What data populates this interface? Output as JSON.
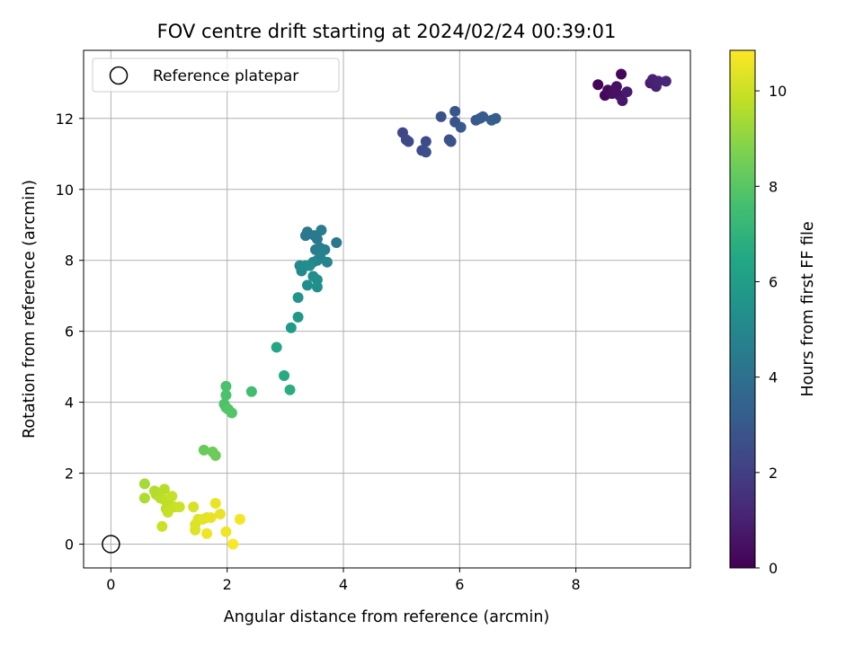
{
  "chart_data": {
    "type": "scatter",
    "title": "FOV centre drift starting at 2024/02/24 00:39:01",
    "xlabel": "Angular distance from reference (arcmin)",
    "ylabel": "Rotation from reference (arcmin)",
    "xlim": [
      -0.47,
      9.97
    ],
    "ylim": [
      -0.67,
      13.92
    ],
    "xticks": [
      0,
      2,
      4,
      6,
      8
    ],
    "yticks": [
      0,
      2,
      4,
      6,
      8,
      10,
      12
    ],
    "grid": true,
    "legend": {
      "placement": "top-left",
      "entries": [
        "Reference platepar"
      ]
    },
    "colorbar": {
      "label": "Hours from first FF file",
      "range": [
        0,
        10.85
      ],
      "ticks": [
        0,
        2,
        4,
        6,
        8,
        10
      ],
      "colormap": "viridis"
    },
    "reference_point": {
      "x": 0,
      "y": 0
    },
    "points": [
      {
        "x": 8.38,
        "y": 12.95,
        "c": 0.1
      },
      {
        "x": 8.5,
        "y": 12.65,
        "c": 0.2
      },
      {
        "x": 8.55,
        "y": 12.8,
        "c": 0.3
      },
      {
        "x": 8.62,
        "y": 12.7,
        "c": 0.4
      },
      {
        "x": 8.7,
        "y": 12.9,
        "c": 0.5
      },
      {
        "x": 8.75,
        "y": 12.65,
        "c": 0.6
      },
      {
        "x": 8.78,
        "y": 13.25,
        "c": 0.2
      },
      {
        "x": 8.8,
        "y": 12.5,
        "c": 0.7
      },
      {
        "x": 8.88,
        "y": 12.75,
        "c": 0.8
      },
      {
        "x": 8.68,
        "y": 12.75,
        "c": 0.5
      },
      {
        "x": 9.28,
        "y": 13.0,
        "c": 0.9
      },
      {
        "x": 9.32,
        "y": 13.1,
        "c": 1.0
      },
      {
        "x": 9.38,
        "y": 12.9,
        "c": 1.0
      },
      {
        "x": 9.42,
        "y": 13.05,
        "c": 1.1
      },
      {
        "x": 9.55,
        "y": 13.05,
        "c": 1.2
      },
      {
        "x": 5.02,
        "y": 11.6,
        "c": 2.3
      },
      {
        "x": 5.08,
        "y": 11.4,
        "c": 2.4
      },
      {
        "x": 5.12,
        "y": 11.35,
        "c": 2.4
      },
      {
        "x": 5.35,
        "y": 11.1,
        "c": 2.5
      },
      {
        "x": 5.42,
        "y": 11.35,
        "c": 2.5
      },
      {
        "x": 5.42,
        "y": 11.05,
        "c": 2.6
      },
      {
        "x": 5.68,
        "y": 12.05,
        "c": 2.7
      },
      {
        "x": 5.82,
        "y": 11.4,
        "c": 2.7
      },
      {
        "x": 5.85,
        "y": 11.35,
        "c": 2.8
      },
      {
        "x": 5.92,
        "y": 11.9,
        "c": 2.8
      },
      {
        "x": 5.92,
        "y": 12.2,
        "c": 2.9
      },
      {
        "x": 6.02,
        "y": 11.75,
        "c": 3.0
      },
      {
        "x": 6.28,
        "y": 11.95,
        "c": 3.0
      },
      {
        "x": 6.35,
        "y": 12.0,
        "c": 3.1
      },
      {
        "x": 6.4,
        "y": 12.05,
        "c": 3.1
      },
      {
        "x": 6.55,
        "y": 11.95,
        "c": 3.2
      },
      {
        "x": 6.62,
        "y": 12.0,
        "c": 3.2
      },
      {
        "x": 3.35,
        "y": 8.7,
        "c": 4.3
      },
      {
        "x": 3.38,
        "y": 8.8,
        "c": 4.3
      },
      {
        "x": 3.5,
        "y": 8.7,
        "c": 4.4
      },
      {
        "x": 3.55,
        "y": 8.6,
        "c": 4.4
      },
      {
        "x": 3.62,
        "y": 8.85,
        "c": 4.5
      },
      {
        "x": 3.88,
        "y": 8.5,
        "c": 4.3
      },
      {
        "x": 3.52,
        "y": 8.3,
        "c": 4.6
      },
      {
        "x": 3.6,
        "y": 8.35,
        "c": 4.6
      },
      {
        "x": 3.68,
        "y": 8.3,
        "c": 4.7
      },
      {
        "x": 3.55,
        "y": 8.0,
        "c": 4.8
      },
      {
        "x": 3.6,
        "y": 8.1,
        "c": 4.8
      },
      {
        "x": 3.72,
        "y": 7.95,
        "c": 4.9
      },
      {
        "x": 3.48,
        "y": 7.95,
        "c": 5.0
      },
      {
        "x": 3.25,
        "y": 7.85,
        "c": 5.1
      },
      {
        "x": 3.28,
        "y": 7.7,
        "c": 5.1
      },
      {
        "x": 3.35,
        "y": 7.85,
        "c": 5.2
      },
      {
        "x": 3.42,
        "y": 7.85,
        "c": 5.2
      },
      {
        "x": 3.38,
        "y": 7.3,
        "c": 5.3
      },
      {
        "x": 3.48,
        "y": 7.55,
        "c": 5.3
      },
      {
        "x": 3.55,
        "y": 7.45,
        "c": 5.4
      },
      {
        "x": 3.55,
        "y": 7.25,
        "c": 5.4
      },
      {
        "x": 3.22,
        "y": 6.95,
        "c": 5.6
      },
      {
        "x": 3.22,
        "y": 6.4,
        "c": 5.8
      },
      {
        "x": 3.1,
        "y": 6.1,
        "c": 5.9
      },
      {
        "x": 2.85,
        "y": 5.55,
        "c": 6.4
      },
      {
        "x": 2.98,
        "y": 4.75,
        "c": 6.6
      },
      {
        "x": 3.08,
        "y": 4.35,
        "c": 6.8
      },
      {
        "x": 2.42,
        "y": 4.3,
        "c": 7.5
      },
      {
        "x": 1.98,
        "y": 4.45,
        "c": 7.7
      },
      {
        "x": 1.98,
        "y": 4.2,
        "c": 7.7
      },
      {
        "x": 1.95,
        "y": 3.95,
        "c": 7.8
      },
      {
        "x": 1.98,
        "y": 3.85,
        "c": 7.8
      },
      {
        "x": 2.02,
        "y": 3.8,
        "c": 7.9
      },
      {
        "x": 2.08,
        "y": 3.7,
        "c": 7.9
      },
      {
        "x": 1.6,
        "y": 2.65,
        "c": 8.3
      },
      {
        "x": 1.75,
        "y": 2.6,
        "c": 8.4
      },
      {
        "x": 1.8,
        "y": 2.5,
        "c": 8.4
      },
      {
        "x": 0.58,
        "y": 1.7,
        "c": 9.4
      },
      {
        "x": 0.58,
        "y": 1.3,
        "c": 9.5
      },
      {
        "x": 0.75,
        "y": 1.5,
        "c": 9.6
      },
      {
        "x": 0.78,
        "y": 1.4,
        "c": 9.6
      },
      {
        "x": 0.85,
        "y": 1.3,
        "c": 9.7
      },
      {
        "x": 0.92,
        "y": 1.55,
        "c": 9.7
      },
      {
        "x": 0.92,
        "y": 1.25,
        "c": 9.8
      },
      {
        "x": 0.95,
        "y": 1.0,
        "c": 9.8
      },
      {
        "x": 1.0,
        "y": 1.1,
        "c": 9.8
      },
      {
        "x": 1.05,
        "y": 1.35,
        "c": 9.9
      },
      {
        "x": 1.1,
        "y": 1.05,
        "c": 9.9
      },
      {
        "x": 0.98,
        "y": 0.9,
        "c": 9.9
      },
      {
        "x": 1.18,
        "y": 1.05,
        "c": 10.0
      },
      {
        "x": 0.88,
        "y": 0.5,
        "c": 10.0
      },
      {
        "x": 1.42,
        "y": 1.05,
        "c": 10.2
      },
      {
        "x": 1.5,
        "y": 0.7,
        "c": 10.3
      },
      {
        "x": 1.45,
        "y": 0.55,
        "c": 10.3
      },
      {
        "x": 1.45,
        "y": 0.4,
        "c": 10.3
      },
      {
        "x": 1.58,
        "y": 0.7,
        "c": 10.4
      },
      {
        "x": 1.65,
        "y": 0.75,
        "c": 10.4
      },
      {
        "x": 1.72,
        "y": 0.75,
        "c": 10.5
      },
      {
        "x": 1.8,
        "y": 1.15,
        "c": 10.5
      },
      {
        "x": 1.88,
        "y": 0.85,
        "c": 10.5
      },
      {
        "x": 1.65,
        "y": 0.3,
        "c": 10.6
      },
      {
        "x": 1.98,
        "y": 0.35,
        "c": 10.6
      },
      {
        "x": 2.22,
        "y": 0.7,
        "c": 10.7
      },
      {
        "x": 2.1,
        "y": 0.0,
        "c": 10.8
      }
    ]
  }
}
